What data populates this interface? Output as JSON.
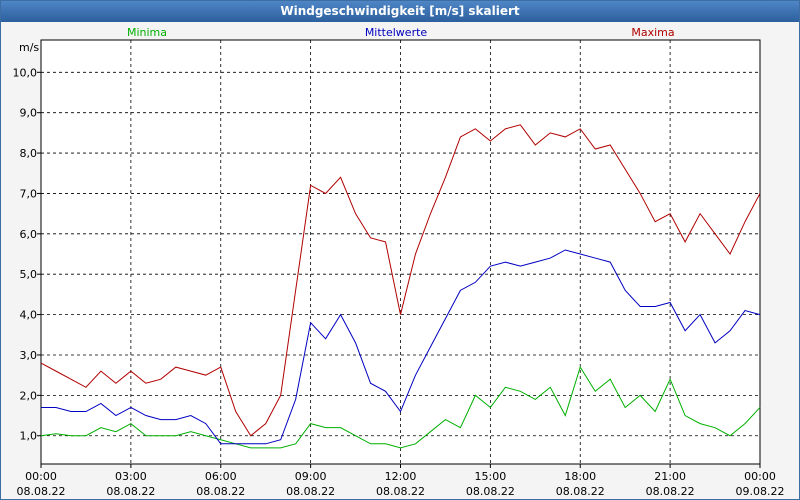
{
  "window": {
    "title": "Windgeschwindigkeit [m/s] skaliert"
  },
  "chart_data": {
    "type": "line",
    "title": "Windgeschwindigkeit [m/s] skaliert",
    "ylabel": "m/s",
    "xlabel": "",
    "ylim": [
      0.3,
      10.8
    ],
    "xlim": [
      0,
      24
    ],
    "grid": true,
    "legend_position": "top",
    "y_ticks": [
      {
        "value": 1.0,
        "label": "1,0"
      },
      {
        "value": 2.0,
        "label": "2,0"
      },
      {
        "value": 3.0,
        "label": "3,0"
      },
      {
        "value": 4.0,
        "label": "4,0"
      },
      {
        "value": 5.0,
        "label": "5,0"
      },
      {
        "value": 6.0,
        "label": "6,0"
      },
      {
        "value": 7.0,
        "label": "7,0"
      },
      {
        "value": 8.0,
        "label": "8,0"
      },
      {
        "value": 9.0,
        "label": "9,0"
      },
      {
        "value": 10.0,
        "label": "10,0"
      }
    ],
    "x_ticks": [
      {
        "value": 0,
        "time": "00:00",
        "date": "08.08.22"
      },
      {
        "value": 3,
        "time": "03:00",
        "date": "08.08.22"
      },
      {
        "value": 6,
        "time": "06:00",
        "date": "08.08.22"
      },
      {
        "value": 9,
        "time": "09:00",
        "date": "08.08.22"
      },
      {
        "value": 12,
        "time": "12:00",
        "date": "08.08.22"
      },
      {
        "value": 15,
        "time": "15:00",
        "date": "08.08.22"
      },
      {
        "value": 18,
        "time": "18:00",
        "date": "08.08.22"
      },
      {
        "value": 21,
        "time": "21:00",
        "date": "08.08.22"
      },
      {
        "value": 24,
        "time": "00:00",
        "date": "09.08.22"
      }
    ],
    "x": [
      0,
      0.5,
      1,
      1.5,
      2,
      2.5,
      3,
      3.5,
      4,
      4.5,
      5,
      5.5,
      6,
      6.5,
      7,
      7.5,
      8,
      8.5,
      9,
      9.5,
      10,
      10.5,
      11,
      11.5,
      12,
      12.5,
      13,
      13.5,
      14,
      14.5,
      15,
      15.5,
      16,
      16.5,
      17,
      17.5,
      18,
      18.5,
      19,
      19.5,
      20,
      20.5,
      21,
      21.5,
      22,
      22.5,
      23,
      23.5,
      24
    ],
    "series": [
      {
        "name": "Minima",
        "color": "#00b000",
        "values": [
          1.0,
          1.05,
          1.0,
          1.0,
          1.2,
          1.1,
          1.3,
          1.0,
          1.0,
          1.0,
          1.1,
          1.0,
          0.9,
          0.8,
          0.7,
          0.7,
          0.7,
          0.8,
          1.3,
          1.2,
          1.2,
          1.0,
          0.8,
          0.8,
          0.7,
          0.8,
          1.1,
          1.4,
          1.2,
          2.0,
          1.7,
          2.2,
          2.1,
          1.9,
          2.2,
          1.5,
          2.7,
          2.1,
          2.4,
          1.7,
          2.0,
          1.6,
          2.4,
          1.5,
          1.3,
          1.2,
          1.0,
          1.3,
          1.7
        ]
      },
      {
        "name": "Mittelwerte",
        "color": "#0000c0",
        "values": [
          1.7,
          1.7,
          1.6,
          1.6,
          1.8,
          1.5,
          1.7,
          1.5,
          1.4,
          1.4,
          1.5,
          1.3,
          0.8,
          0.8,
          0.8,
          0.8,
          0.9,
          1.9,
          3.8,
          3.4,
          4.0,
          3.3,
          2.3,
          2.1,
          1.6,
          2.5,
          3.2,
          3.9,
          4.6,
          4.8,
          5.2,
          5.3,
          5.2,
          5.3,
          5.4,
          5.6,
          5.5,
          5.4,
          5.3,
          4.6,
          4.2,
          4.2,
          4.3,
          3.6,
          4.0,
          3.3,
          3.6,
          4.1,
          4.0
        ]
      },
      {
        "name": "Maxima",
        "color": "#b00000",
        "values": [
          2.8,
          2.6,
          2.4,
          2.2,
          2.6,
          2.3,
          2.6,
          2.3,
          2.4,
          2.7,
          2.6,
          2.5,
          2.7,
          1.6,
          1.0,
          1.3,
          2.0,
          4.6,
          7.2,
          7.0,
          7.4,
          6.5,
          5.9,
          5.8,
          4.0,
          5.5,
          6.5,
          7.4,
          8.4,
          8.6,
          8.3,
          8.6,
          8.7,
          8.2,
          8.5,
          8.4,
          8.6,
          8.1,
          8.2,
          7.6,
          7.0,
          6.3,
          6.5,
          5.8,
          6.5,
          6.0,
          5.5,
          6.3,
          7.0
        ]
      }
    ]
  }
}
